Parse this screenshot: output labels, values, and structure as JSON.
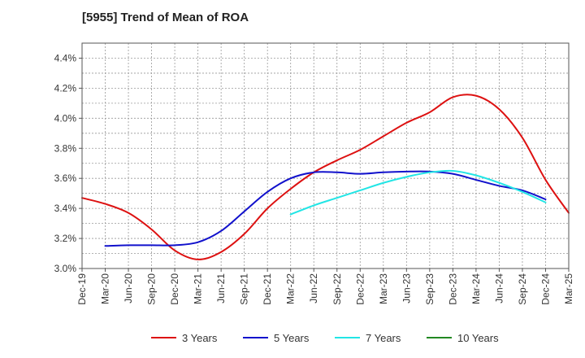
{
  "chart_data": {
    "type": "line",
    "title": "[5955]  Trend of Mean of ROA",
    "xlabel": "",
    "ylabel": "",
    "ylim": [
      3.0,
      4.5
    ],
    "yticks": [
      3.0,
      3.2,
      3.4,
      3.6,
      3.8,
      4.0,
      4.2,
      4.4
    ],
    "ytick_labels": [
      "3.0%",
      "3.2%",
      "3.4%",
      "3.6%",
      "3.8%",
      "4.0%",
      "4.2%",
      "4.4%"
    ],
    "x_categories": [
      "Dec-19",
      "Mar-20",
      "Jun-20",
      "Sep-20",
      "Dec-20",
      "Mar-21",
      "Jun-21",
      "Sep-21",
      "Dec-21",
      "Mar-22",
      "Jun-22",
      "Sep-22",
      "Dec-22",
      "Mar-23",
      "Jun-23",
      "Sep-23",
      "Dec-23",
      "Mar-24",
      "Jun-24",
      "Sep-24",
      "Dec-24",
      "Mar-25"
    ],
    "grid": true,
    "legend_position": "bottom",
    "series": [
      {
        "name": "3 Years",
        "color": "#dd1111",
        "values": [
          3.47,
          3.43,
          3.37,
          3.26,
          3.12,
          3.06,
          3.11,
          3.23,
          3.4,
          3.53,
          3.64,
          3.72,
          3.79,
          3.88,
          3.97,
          4.04,
          4.14,
          4.15,
          4.06,
          3.87,
          3.59,
          3.37
        ]
      },
      {
        "name": "5 Years",
        "color": "#1111cc",
        "values": [
          null,
          3.15,
          3.155,
          3.155,
          3.155,
          3.175,
          3.25,
          3.38,
          3.51,
          3.6,
          3.64,
          3.64,
          3.63,
          3.64,
          3.645,
          3.645,
          3.63,
          3.59,
          3.55,
          3.52,
          3.46
        ]
      },
      {
        "name": "7 Years",
        "color": "#22e5e5",
        "values": [
          null,
          null,
          null,
          null,
          null,
          null,
          null,
          null,
          null,
          3.36,
          3.42,
          3.47,
          3.52,
          3.57,
          3.61,
          3.64,
          3.65,
          3.62,
          3.57,
          3.51,
          3.44
        ]
      },
      {
        "name": "10 Years",
        "color": "#228822",
        "values": []
      }
    ]
  }
}
